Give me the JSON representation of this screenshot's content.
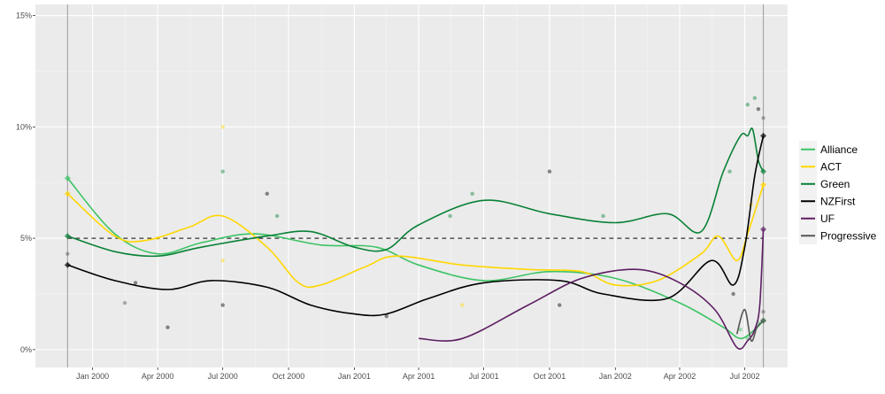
{
  "chart_data": {
    "type": "line",
    "title": "",
    "xlabel": "",
    "ylabel": "",
    "ylim": [
      -0.8,
      15.5
    ],
    "xlim": [
      "1999-10-13",
      "2002-08-30"
    ],
    "y_ticks": [
      0,
      5,
      10,
      15
    ],
    "y_tick_labels": [
      "0%",
      "5%",
      "10%",
      "15%"
    ],
    "x_ticks": [
      "2000-01-01",
      "2000-04-01",
      "2000-07-01",
      "2000-10-01",
      "2001-01-01",
      "2001-04-01",
      "2001-07-01",
      "2001-10-01",
      "2002-01-01",
      "2002-04-01",
      "2002-07-01"
    ],
    "x_tick_labels": [
      "Jan 2000",
      "Apr 2000",
      "Jul 2000",
      "Oct 2000",
      "Jan 2001",
      "Apr 2001",
      "Jul 2001",
      "Oct 2001",
      "Jan 2002",
      "Apr 2002",
      "Jul 2002"
    ],
    "grid": true,
    "legend_position": "right",
    "election_dates": [
      "1999-11-27",
      "2002-07-27"
    ],
    "threshold": 5,
    "series": [
      {
        "name": "Alliance",
        "color": "#3cc464",
        "points": [
          [
            "1999-11-27",
            7.7
          ],
          [
            "2000-02-01",
            5.2
          ],
          [
            "2000-04-01",
            4.3
          ],
          [
            "2000-06-01",
            4.8
          ],
          [
            "2000-08-15",
            5.2
          ],
          [
            "2000-11-15",
            4.7
          ],
          [
            "2001-02-01",
            4.6
          ],
          [
            "2001-04-01",
            3.8
          ],
          [
            "2001-07-01",
            3.1
          ],
          [
            "2001-10-01",
            3.5
          ],
          [
            "2002-01-01",
            3.2
          ],
          [
            "2002-04-01",
            2.1
          ],
          [
            "2002-06-01",
            1.0
          ],
          [
            "2002-06-25",
            0.5
          ],
          [
            "2002-07-15",
            0.9
          ],
          [
            "2002-07-27",
            1.3
          ]
        ]
      },
      {
        "name": "ACT",
        "color": "#ffd700",
        "points": [
          [
            "1999-11-27",
            7.0
          ],
          [
            "2000-02-01",
            5.1
          ],
          [
            "2000-03-15",
            4.9
          ],
          [
            "2000-05-15",
            5.5
          ],
          [
            "2000-07-01",
            6.0
          ],
          [
            "2000-09-01",
            4.6
          ],
          [
            "2000-10-15",
            3.0
          ],
          [
            "2000-11-15",
            2.9
          ],
          [
            "2001-01-15",
            3.7
          ],
          [
            "2001-03-01",
            4.2
          ],
          [
            "2001-06-01",
            3.8
          ],
          [
            "2001-09-01",
            3.6
          ],
          [
            "2001-11-15",
            3.5
          ],
          [
            "2002-01-01",
            2.9
          ],
          [
            "2002-03-01",
            3.1
          ],
          [
            "2002-05-01",
            4.3
          ],
          [
            "2002-05-25",
            5.1
          ],
          [
            "2002-06-20",
            4.0
          ],
          [
            "2002-07-05",
            5.2
          ],
          [
            "2002-07-27",
            7.4
          ]
        ]
      },
      {
        "name": "Green",
        "color": "#098137",
        "points": [
          [
            "1999-11-27",
            5.1
          ],
          [
            "2000-02-01",
            4.4
          ],
          [
            "2000-04-01",
            4.2
          ],
          [
            "2000-06-01",
            4.6
          ],
          [
            "2000-09-01",
            5.1
          ],
          [
            "2000-11-01",
            5.3
          ],
          [
            "2001-01-01",
            4.6
          ],
          [
            "2001-02-15",
            4.5
          ],
          [
            "2001-04-01",
            5.6
          ],
          [
            "2001-07-01",
            6.7
          ],
          [
            "2001-10-01",
            6.1
          ],
          [
            "2002-01-01",
            5.7
          ],
          [
            "2002-03-15",
            6.1
          ],
          [
            "2002-05-01",
            5.3
          ],
          [
            "2002-06-01",
            8.0
          ],
          [
            "2002-06-25",
            9.6
          ],
          [
            "2002-07-05",
            9.6
          ],
          [
            "2002-07-12",
            9.9
          ],
          [
            "2002-07-20",
            8.5
          ],
          [
            "2002-07-27",
            8.0
          ]
        ]
      },
      {
        "name": "NZFirst",
        "color": "#000000",
        "points": [
          [
            "1999-11-27",
            3.8
          ],
          [
            "2000-02-01",
            3.1
          ],
          [
            "2000-04-15",
            2.7
          ],
          [
            "2000-06-15",
            3.1
          ],
          [
            "2000-09-01",
            2.8
          ],
          [
            "2000-11-01",
            2.0
          ],
          [
            "2001-01-01",
            1.6
          ],
          [
            "2001-02-15",
            1.6
          ],
          [
            "2001-04-15",
            2.3
          ],
          [
            "2001-07-01",
            3.0
          ],
          [
            "2001-10-15",
            3.1
          ],
          [
            "2001-12-15",
            2.5
          ],
          [
            "2002-03-15",
            2.3
          ],
          [
            "2002-05-15",
            4.0
          ],
          [
            "2002-06-15",
            2.9
          ],
          [
            "2002-07-01",
            4.6
          ],
          [
            "2002-07-15",
            7.8
          ],
          [
            "2002-07-27",
            9.6
          ]
        ]
      },
      {
        "name": "UF",
        "color": "#5c1e62",
        "points": [
          [
            "2001-04-01",
            0.5
          ],
          [
            "2001-06-01",
            0.5
          ],
          [
            "2001-09-01",
            2.0
          ],
          [
            "2001-11-15",
            3.2
          ],
          [
            "2002-02-01",
            3.6
          ],
          [
            "2002-04-01",
            3.0
          ],
          [
            "2002-05-20",
            1.8
          ],
          [
            "2002-06-20",
            0.1
          ],
          [
            "2002-07-05",
            0.4
          ],
          [
            "2002-07-15",
            0.9
          ],
          [
            "2002-07-22",
            2.0
          ],
          [
            "2002-07-27",
            5.4
          ]
        ]
      },
      {
        "name": "Progressive",
        "color": "#555555",
        "points": [
          [
            "2002-06-20",
            0.7
          ],
          [
            "2002-07-01",
            1.8
          ],
          [
            "2002-07-10",
            0.4
          ],
          [
            "2002-07-18",
            1.0
          ],
          [
            "2002-07-27",
            1.3
          ]
        ]
      }
    ],
    "poll_points": [
      {
        "series": "Alliance",
        "values": [
          [
            "2002-06-25",
            0.9
          ],
          [
            "2002-07-05",
            0.5
          ],
          [
            "2002-07-20",
            1.2
          ]
        ]
      },
      {
        "series": "ACT",
        "values": [
          [
            "2000-07-01",
            10.0
          ],
          [
            "2000-07-01",
            4.0
          ],
          [
            "2000-04-01",
            5.0
          ],
          [
            "2001-06-01",
            2.0
          ],
          [
            "2002-07-10",
            6.5
          ]
        ]
      },
      {
        "series": "Green",
        "values": [
          [
            "2000-07-01",
            8.0
          ],
          [
            "2000-09-15",
            6.0
          ],
          [
            "2001-05-15",
            6.0
          ],
          [
            "2001-06-15",
            7.0
          ],
          [
            "2001-12-15",
            6.0
          ],
          [
            "2002-06-10",
            8.0
          ],
          [
            "2002-07-05",
            11.0
          ],
          [
            "2002-07-15",
            11.3
          ]
        ]
      },
      {
        "series": "NZFirst",
        "values": [
          [
            "2000-03-01",
            3.0
          ],
          [
            "2000-04-15",
            1.0
          ],
          [
            "2000-07-01",
            2.0
          ],
          [
            "2000-09-01",
            7.0
          ],
          [
            "2001-02-15",
            1.5
          ],
          [
            "2001-10-01",
            8.0
          ],
          [
            "2001-10-15",
            2.0
          ],
          [
            "2002-06-15",
            2.5
          ],
          [
            "2002-07-20",
            10.8
          ]
        ]
      },
      {
        "series": "Progressive",
        "values": [
          [
            "1999-11-27",
            4.3
          ],
          [
            "2000-02-15",
            2.1
          ],
          [
            "2002-07-27",
            10.4
          ],
          [
            "2002-07-27",
            1.7
          ]
        ]
      }
    ]
  }
}
